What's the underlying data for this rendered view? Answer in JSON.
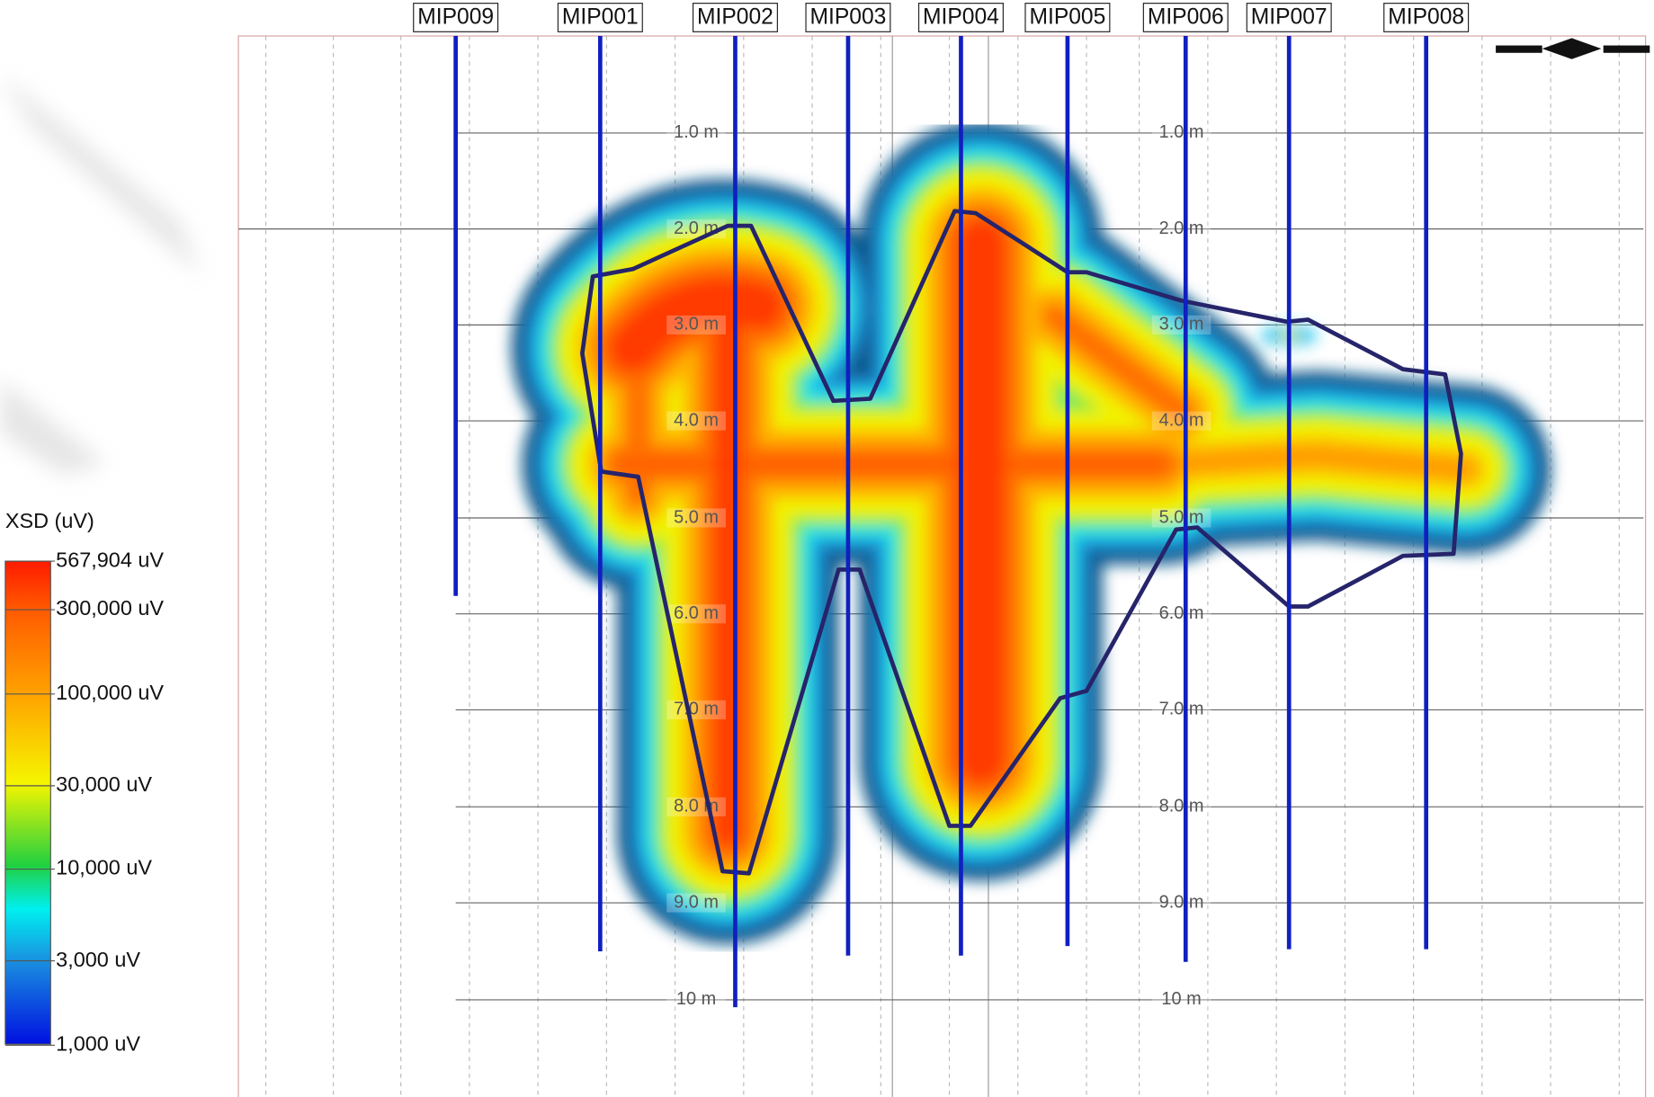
{
  "legend": {
    "title": "XSD (uV)",
    "labels": [
      "567,904 uV",
      "300,000 uV",
      "100,000 uV",
      "30,000 uV",
      "10,000 uV",
      "3,000 uV",
      "1,000 uV"
    ]
  },
  "borings": [
    "MIP009",
    "MIP001",
    "MIP002",
    "MIP003",
    "MIP004",
    "MIP005",
    "MIP006",
    "MIP007",
    "MIP008"
  ],
  "depth_labels": [
    "1.0 m",
    "2.0 m",
    "3.0 m",
    "4.0 m",
    "5.0 m",
    "6.0 m",
    "7.0 m",
    "8.0 m",
    "9.0 m",
    "10 m"
  ]
}
